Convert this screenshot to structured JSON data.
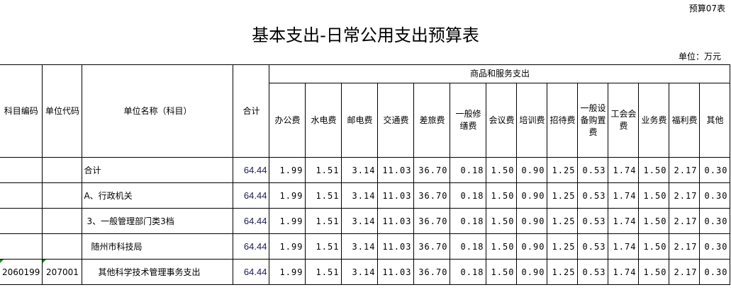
{
  "form_no": "预算07表",
  "title": "基本支出-日常公用支出预算表",
  "unit": "单位：万元",
  "headers": {
    "code": "科目编码",
    "unit_code": "单位代码",
    "name": "单位名称（科目）",
    "total": "合计",
    "group": "商品和服务支出",
    "columns": [
      "办公费",
      "水电费",
      "邮电费",
      "交通费",
      "差旅费",
      "一般修缮费",
      "会议费",
      "培训费",
      "招待费",
      "一般设备购置费",
      "工会会费",
      "业务费",
      "福利费",
      "其他"
    ]
  },
  "rows": [
    {
      "code": "",
      "unit_code": "",
      "name": "合计",
      "indent": 0,
      "total": "64.44",
      "values": [
        "1.99",
        "1.51",
        "3.14",
        "11.03",
        "36.70",
        "0.18",
        "1.50",
        "0.90",
        "1.25",
        "0.53",
        "1.74",
        "1.50",
        "2.17",
        "0.30"
      ]
    },
    {
      "code": "",
      "unit_code": "",
      "name": "A、行政机关",
      "indent": 0,
      "total": "64.44",
      "values": [
        "1.99",
        "1.51",
        "3.14",
        "11.03",
        "36.70",
        "0.18",
        "1.50",
        "0.90",
        "1.25",
        "0.53",
        "1.74",
        "1.50",
        "2.17",
        "0.30"
      ]
    },
    {
      "code": "",
      "unit_code": "",
      "name": "3、一般管理部门类3档",
      "indent": 1,
      "total": "64.44",
      "values": [
        "1.99",
        "1.51",
        "3.14",
        "11.03",
        "36.70",
        "0.18",
        "1.50",
        "0.90",
        "1.25",
        "0.53",
        "1.74",
        "1.50",
        "2.17",
        "0.30"
      ]
    },
    {
      "code": "",
      "unit_code": "",
      "name": "随州市科技局",
      "indent": 2,
      "total": "64.44",
      "values": [
        "1.99",
        "1.51",
        "3.14",
        "11.03",
        "36.70",
        "0.18",
        "1.50",
        "0.90",
        "1.25",
        "0.53",
        "1.74",
        "1.50",
        "2.17",
        "0.30"
      ]
    },
    {
      "code": "2060199",
      "unit_code": "207001",
      "name": "其他科学技术管理事务支出",
      "indent": 3,
      "total": "64.44",
      "values": [
        "1.99",
        "1.51",
        "3.14",
        "11.03",
        "36.70",
        "0.18",
        "1.50",
        "0.90",
        "1.25",
        "0.53",
        "1.74",
        "1.50",
        "2.17",
        "0.30"
      ]
    }
  ]
}
